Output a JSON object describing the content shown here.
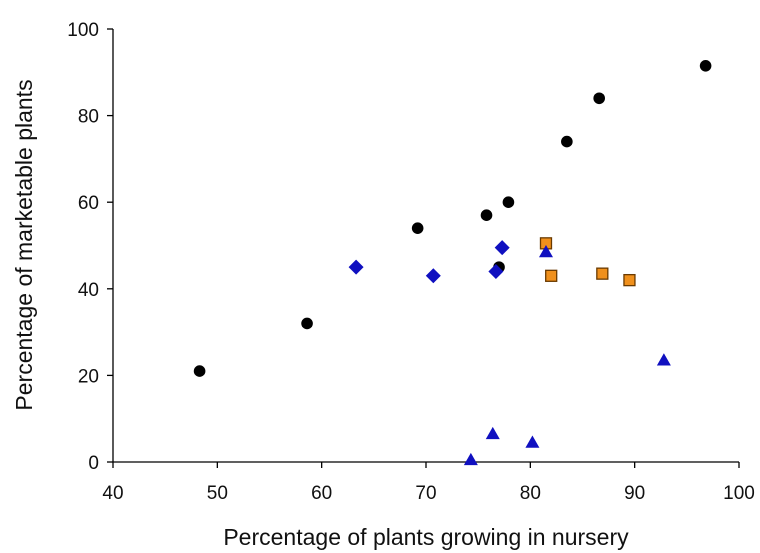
{
  "chart_data": {
    "type": "scatter",
    "title": "",
    "xlabel": "Percentage of plants growing in nursery",
    "ylabel": "Percentage of marketable plants",
    "xlim": [
      40,
      100
    ],
    "ylim": [
      0,
      100
    ],
    "xticks": [
      40,
      50,
      60,
      70,
      80,
      90,
      100
    ],
    "yticks": [
      0,
      20,
      40,
      60,
      80,
      100
    ],
    "grid": false,
    "legend": "none",
    "series": [
      {
        "marker": "circle",
        "color": "#000000",
        "points": [
          [
            48.3,
            21
          ],
          [
            58.6,
            32
          ],
          [
            69.2,
            54
          ],
          [
            75.8,
            57
          ],
          [
            77.0,
            45
          ],
          [
            77.9,
            60
          ],
          [
            83.5,
            74
          ],
          [
            86.6,
            84
          ],
          [
            96.8,
            91.5
          ]
        ]
      },
      {
        "marker": "diamond",
        "color": "#1010c0",
        "points": [
          [
            63.3,
            45
          ],
          [
            70.7,
            43
          ],
          [
            76.7,
            44
          ],
          [
            77.3,
            49.5
          ]
        ]
      },
      {
        "marker": "square",
        "color": "#f0901c",
        "points": [
          [
            81.5,
            50.5
          ],
          [
            82.0,
            43
          ],
          [
            86.9,
            43.5
          ],
          [
            89.5,
            42
          ]
        ]
      },
      {
        "marker": "triangle",
        "color": "#1010c0",
        "points": [
          [
            74.3,
            0.5
          ],
          [
            76.4,
            6.5
          ],
          [
            80.2,
            4.5
          ],
          [
            81.5,
            48.5
          ],
          [
            92.8,
            23.5
          ]
        ]
      }
    ]
  }
}
